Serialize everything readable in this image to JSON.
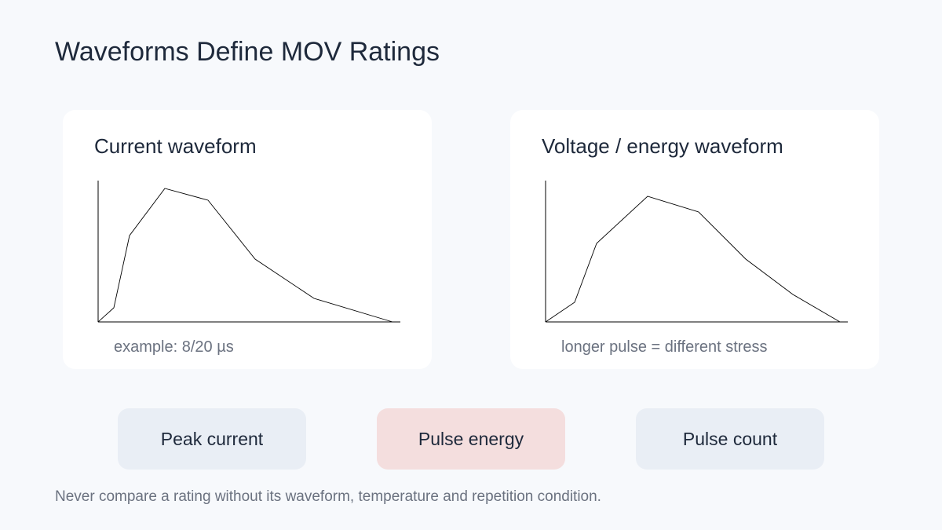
{
  "title": "Waveforms Define MOV Ratings",
  "panels": [
    {
      "title": "Current waveform",
      "caption": "example: 8/20 µs"
    },
    {
      "title": "Voltage / energy waveform",
      "caption": "longer pulse = different stress"
    }
  ],
  "chips": [
    {
      "label": "Peak current",
      "color": "#e9eef5"
    },
    {
      "label": "Pulse energy",
      "color": "#f4dede"
    },
    {
      "label": "Pulse count",
      "color": "#e9eef5"
    }
  ],
  "footer": "Never compare a rating without its waveform, temperature and repetition condition."
}
